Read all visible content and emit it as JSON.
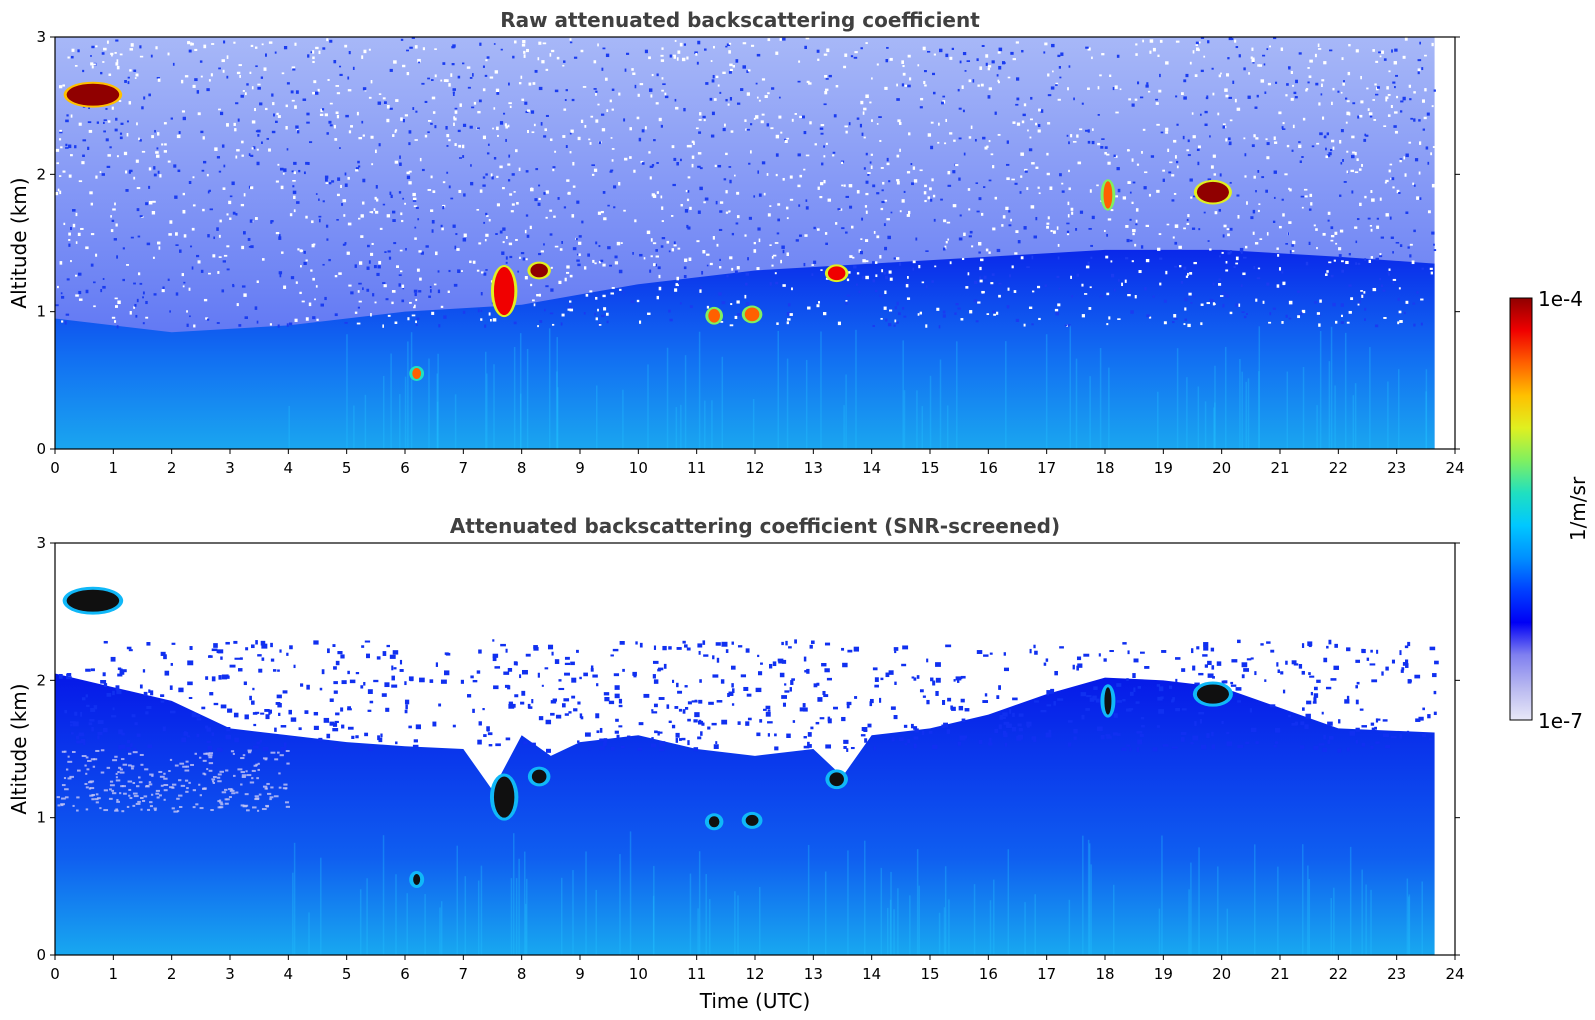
{
  "chart_data": [
    {
      "type": "heatmap",
      "title": "Raw attenuated backscattering coefficient",
      "xlabel": "",
      "ylabel": "Altitude (km)",
      "xlim": [
        0,
        24
      ],
      "ylim": [
        0,
        3
      ],
      "xticks": [
        "0",
        "1",
        "2",
        "3",
        "4",
        "5",
        "6",
        "7",
        "8",
        "9",
        "10",
        "11",
        "12",
        "13",
        "14",
        "15",
        "16",
        "17",
        "18",
        "19",
        "20",
        "21",
        "22",
        "23",
        "24"
      ],
      "yticks": [
        "0",
        "1",
        "2",
        "3"
      ],
      "data_end_x": 23.65,
      "boundary_layer_top_km": [
        [
          0,
          0.95
        ],
        [
          2,
          0.85
        ],
        [
          4,
          0.9
        ],
        [
          6,
          1.0
        ],
        [
          8,
          1.05
        ],
        [
          10,
          1.2
        ],
        [
          12,
          1.3
        ],
        [
          14,
          1.35
        ],
        [
          16,
          1.4
        ],
        [
          18,
          1.45
        ],
        [
          20,
          1.45
        ],
        [
          22,
          1.4
        ],
        [
          23.65,
          1.35
        ]
      ],
      "features": [
        {
          "x": 0.65,
          "y": 2.58,
          "w": 0.9,
          "h": 0.16,
          "level": 0.97
        },
        {
          "x": 7.7,
          "y": 1.15,
          "w": 0.35,
          "h": 0.35,
          "level": 0.92
        },
        {
          "x": 8.3,
          "y": 1.3,
          "w": 0.3,
          "h": 0.1,
          "level": 0.95
        },
        {
          "x": 13.4,
          "y": 1.28,
          "w": 0.3,
          "h": 0.1,
          "level": 0.9
        },
        {
          "x": 19.85,
          "y": 1.87,
          "w": 0.55,
          "h": 0.15,
          "level": 0.96
        },
        {
          "x": 18.05,
          "y": 1.85,
          "w": 0.15,
          "h": 0.2,
          "level": 0.85
        },
        {
          "x": 11.3,
          "y": 0.97,
          "w": 0.2,
          "h": 0.1,
          "level": 0.85
        },
        {
          "x": 11.95,
          "y": 0.98,
          "w": 0.25,
          "h": 0.1,
          "level": 0.85
        },
        {
          "x": 6.2,
          "y": 0.55,
          "w": 0.15,
          "h": 0.08,
          "level": 0.8
        }
      ]
    },
    {
      "type": "heatmap",
      "title": "Attenuated backscattering coefficient (SNR-screened)",
      "xlabel": "Time (UTC)",
      "ylabel": "Altitude (km)",
      "xlim": [
        0,
        24
      ],
      "ylim": [
        0,
        3
      ],
      "xticks": [
        "0",
        "1",
        "2",
        "3",
        "4",
        "5",
        "6",
        "7",
        "8",
        "9",
        "10",
        "11",
        "12",
        "13",
        "14",
        "15",
        "16",
        "17",
        "18",
        "19",
        "20",
        "21",
        "22",
        "23",
        "24"
      ],
      "yticks": [
        "0",
        "1",
        "2",
        "3"
      ],
      "data_end_x": 23.65,
      "screened_top_km": [
        [
          0,
          2.05
        ],
        [
          1,
          1.95
        ],
        [
          2,
          1.85
        ],
        [
          3,
          1.65
        ],
        [
          4,
          1.6
        ],
        [
          5,
          1.55
        ],
        [
          6,
          1.52
        ],
        [
          7,
          1.5
        ],
        [
          7.5,
          1.2
        ],
        [
          8,
          1.6
        ],
        [
          8.5,
          1.45
        ],
        [
          9,
          1.55
        ],
        [
          10,
          1.6
        ],
        [
          11,
          1.5
        ],
        [
          12,
          1.45
        ],
        [
          13,
          1.5
        ],
        [
          13.5,
          1.3
        ],
        [
          14,
          1.6
        ],
        [
          15,
          1.65
        ],
        [
          16,
          1.75
        ],
        [
          17,
          1.9
        ],
        [
          18,
          2.02
        ],
        [
          19,
          2.0
        ],
        [
          20,
          1.95
        ],
        [
          21,
          1.8
        ],
        [
          22,
          1.65
        ],
        [
          23.65,
          1.62
        ]
      ],
      "features": [
        {
          "x": 0.65,
          "y": 2.58,
          "w": 0.9,
          "h": 0.16,
          "level": 1.0
        },
        {
          "x": 7.7,
          "y": 1.15,
          "w": 0.35,
          "h": 0.3,
          "level": 1.0
        },
        {
          "x": 8.3,
          "y": 1.3,
          "w": 0.25,
          "h": 0.1,
          "level": 1.0
        },
        {
          "x": 13.4,
          "y": 1.28,
          "w": 0.25,
          "h": 0.1,
          "level": 1.0
        },
        {
          "x": 19.85,
          "y": 1.9,
          "w": 0.55,
          "h": 0.14,
          "level": 1.0
        },
        {
          "x": 18.05,
          "y": 1.85,
          "w": 0.12,
          "h": 0.2,
          "level": 1.0
        },
        {
          "x": 11.3,
          "y": 0.97,
          "w": 0.18,
          "h": 0.08,
          "level": 1.0
        },
        {
          "x": 11.95,
          "y": 0.98,
          "w": 0.22,
          "h": 0.08,
          "level": 1.0
        },
        {
          "x": 6.2,
          "y": 0.55,
          "w": 0.12,
          "h": 0.08,
          "level": 1.0
        }
      ]
    }
  ],
  "colorbar": {
    "label": "1/m/sr",
    "max_label": "1e-4",
    "min_label": "1e-7",
    "scale": "log",
    "colormap": [
      "#e8e8f8",
      "#b8b8f0",
      "#8080f0",
      "#0000f5",
      "#0040ff",
      "#0090ff",
      "#00c8ff",
      "#20e0c0",
      "#80f060",
      "#e0f020",
      "#ffc000",
      "#ff6000",
      "#f00000",
      "#900000"
    ]
  }
}
